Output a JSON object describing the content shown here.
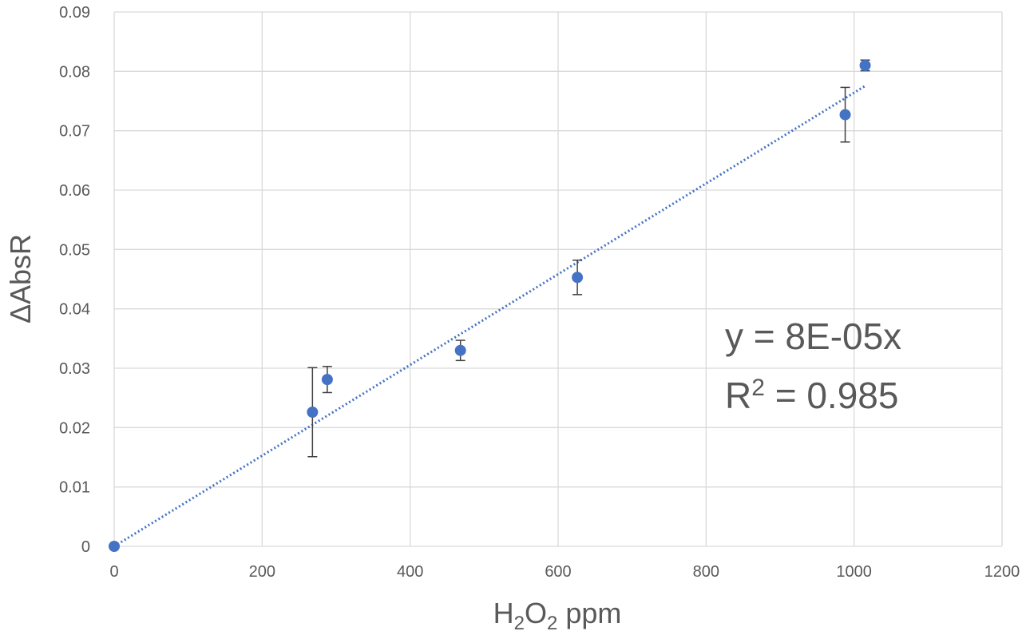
{
  "chart_data": {
    "type": "scatter",
    "title": "",
    "xlabel": "H2O2 ppm",
    "xlabel_parts": {
      "pre": "H",
      "sub1": "2",
      "mid": "O",
      "sub2": "2",
      "post": " ppm"
    },
    "ylabel": "ΔAbsR",
    "xlim": [
      0,
      1200
    ],
    "ylim": [
      0,
      0.09
    ],
    "x_ticks": [
      0,
      200,
      400,
      600,
      800,
      1000,
      1200
    ],
    "y_ticks": [
      0,
      0.01,
      0.02,
      0.03,
      0.04,
      0.05,
      0.06,
      0.07,
      0.08,
      0.09
    ],
    "x_tick_labels": [
      "0",
      "200",
      "400",
      "600",
      "800",
      "1000",
      "1200"
    ],
    "y_tick_labels": [
      "0",
      "0.01",
      "0.02",
      "0.03",
      "0.04",
      "0.05",
      "0.06",
      "0.07",
      "0.08",
      "0.09"
    ],
    "grid": true,
    "series": [
      {
        "points": [
          {
            "x": 0,
            "y": 0,
            "err": 0
          },
          {
            "x": 268,
            "y": 0.0226,
            "err": 0.0075
          },
          {
            "x": 288,
            "y": 0.0281,
            "err": 0.0022
          },
          {
            "x": 468,
            "y": 0.033,
            "err": 0.0017
          },
          {
            "x": 626,
            "y": 0.0453,
            "err": 0.0029
          },
          {
            "x": 988,
            "y": 0.0727,
            "err": 0.0046
          },
          {
            "x": 1015,
            "y": 0.081,
            "err": 0.0009
          }
        ],
        "color": "#4472c4"
      }
    ],
    "trendline": {
      "type": "linear",
      "slope": 7.64e-05,
      "intercept": 0,
      "x_range": [
        0,
        1015
      ],
      "color": "#4472c4",
      "style": "dotted"
    },
    "annotations": {
      "equation": "y = 8E-05x",
      "r2_prefix": "R",
      "r2_sup": "2",
      "r2_suffix": " = 0.985"
    },
    "colors": {
      "marker": "#4472c4",
      "error_bar": "#404040",
      "grid": "#d9d9d9",
      "text": "#595959"
    }
  }
}
